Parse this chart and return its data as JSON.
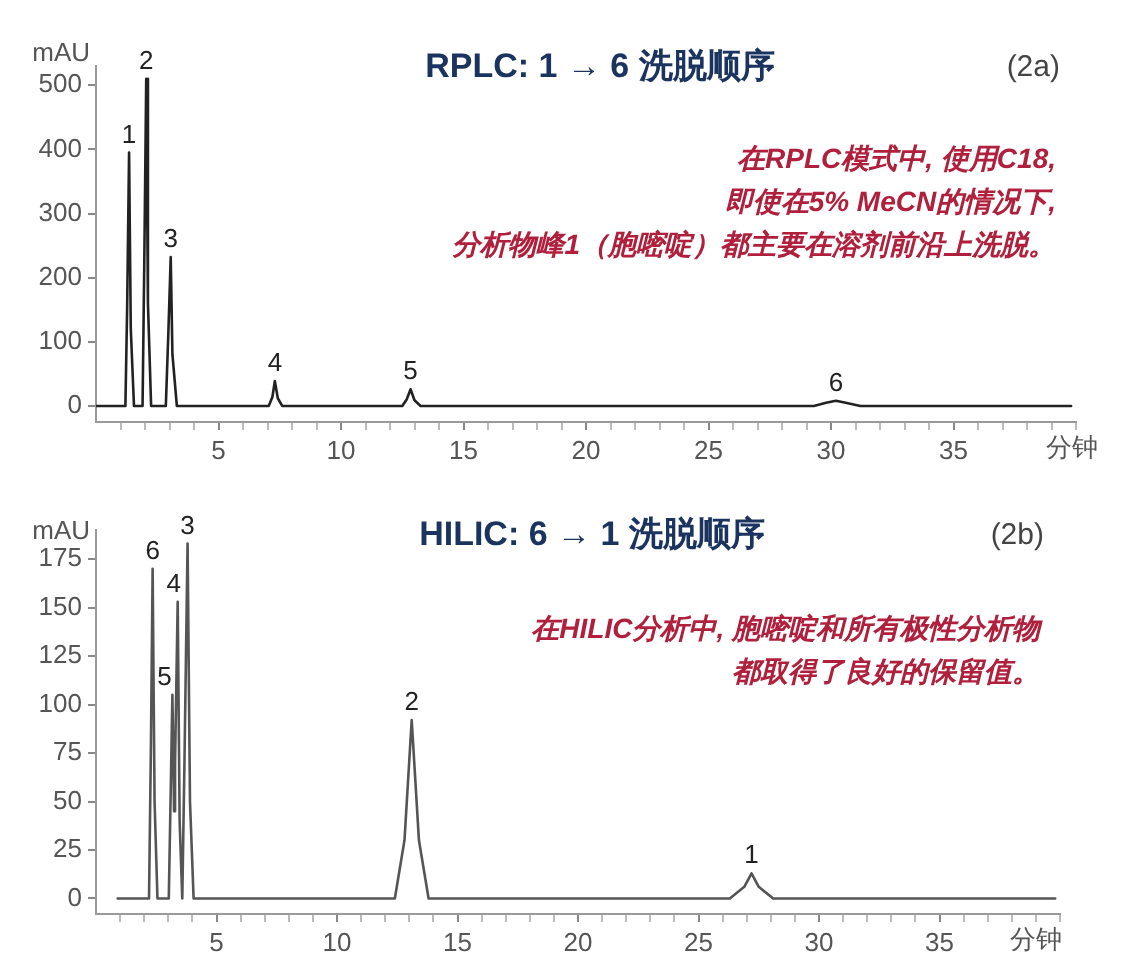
{
  "chart_data": [
    {
      "type": "line",
      "title": "RPLC: 1 → 6 洗脱顺序",
      "subtitle": "(2a)",
      "xlabel": "分钟",
      "ylabel": "mAU",
      "annotations": [
        "在RPLC模式中, 使用C18,",
        "即使在5% MeCN的情况下,",
        "分析物峰1（胞嘧啶）都主要在溶剂前沿上洗脱。",
        {
          "text": "1",
          "x": 1.35,
          "y": 395
        },
        {
          "text": "2",
          "x": 2.05,
          "y": 510
        },
        {
          "text": "3",
          "x": 3.05,
          "y": 232
        },
        {
          "text": "4",
          "x": 7.3,
          "y": 39
        },
        {
          "text": "5",
          "x": 12.84,
          "y": 26
        },
        {
          "text": "6",
          "x": 30.2,
          "y": 8
        }
      ],
      "x": [
        0,
        1.2,
        1.27,
        1.35,
        1.42,
        1.55,
        1.9,
        1.97,
        2.05,
        2.12,
        2.25,
        2.85,
        2.95,
        3.05,
        3.12,
        3.3,
        7.05,
        7.2,
        7.3,
        7.42,
        7.6,
        12.5,
        12.68,
        12.84,
        13.0,
        13.25,
        29.3,
        29.8,
        30.2,
        30.6,
        31.2,
        39.8
      ],
      "series": [
        {
          "color": "#222222",
          "values": [
            0,
            0,
            150,
            395,
            120,
            0,
            0,
            220,
            510,
            160,
            0,
            0,
            110,
            232,
            80,
            0,
            0,
            14,
            39,
            12,
            0,
            0,
            10,
            26,
            9,
            0,
            0,
            5,
            8,
            5,
            0,
            0
          ]
        }
      ],
      "xlim": [
        0,
        40
      ],
      "ylim": [
        -25,
        530
      ],
      "xticks": [
        {
          "value": 1,
          "label": null
        },
        {
          "value": 2,
          "label": null
        },
        {
          "value": 3,
          "label": null
        },
        {
          "value": 4,
          "label": null
        },
        5,
        {
          "value": 6,
          "label": null
        },
        {
          "value": 7,
          "label": null
        },
        {
          "value": 8,
          "label": null
        },
        {
          "value": 9,
          "label": null
        },
        10,
        {
          "value": 11,
          "label": null
        },
        {
          "value": 12,
          "label": null
        },
        {
          "value": 13,
          "label": null
        },
        {
          "value": 14,
          "label": null
        },
        15,
        {
          "value": 16,
          "label": null
        },
        {
          "value": 17,
          "label": null
        },
        {
          "value": 18,
          "label": null
        },
        {
          "value": 19,
          "label": null
        },
        20,
        {
          "value": 21,
          "label": null
        },
        {
          "value": 22,
          "label": null
        },
        {
          "value": 23,
          "label": null
        },
        {
          "value": 24,
          "label": null
        },
        25,
        {
          "value": 26,
          "label": null
        },
        {
          "value": 27,
          "label": null
        },
        {
          "value": 28,
          "label": null
        },
        {
          "value": 29,
          "label": null
        },
        30,
        {
          "value": 31,
          "label": null
        },
        {
          "value": 32,
          "label": null
        },
        {
          "value": 33,
          "label": null
        },
        {
          "value": 34,
          "label": null
        },
        35,
        {
          "value": 36,
          "label": null
        },
        {
          "value": 37,
          "label": null
        },
        {
          "value": 38,
          "label": null
        },
        {
          "value": 39,
          "label": null
        },
        {
          "value": 40,
          "label": null
        }
      ],
      "yticks": [
        0,
        100,
        200,
        300,
        400,
        500
      ]
    },
    {
      "type": "line",
      "title": "HILIC: 6 → 1 洗脱顺序",
      "subtitle": "(2b)",
      "xlabel": "分钟",
      "ylabel": "mAU",
      "annotations": [
        "在HILIC分析中, 胞嘧啶和所有极性分析物",
        "都取得了良好的保留值。",
        {
          "text": "6",
          "x": 2.35,
          "y": 170
        },
        {
          "text": "5",
          "x": 3.17,
          "y": 105
        },
        {
          "text": "4",
          "x": 3.39,
          "y": 153
        },
        {
          "text": "3",
          "x": 3.8,
          "y": 183
        },
        {
          "text": "2",
          "x": 13.1,
          "y": 92
        },
        {
          "text": "1",
          "x": 27.2,
          "y": 13
        }
      ],
      "x": [
        0.9,
        2.2,
        2.28,
        2.35,
        2.43,
        2.55,
        3.02,
        3.1,
        3.17,
        3.24,
        3.28,
        3.39,
        3.47,
        3.58,
        3.67,
        3.8,
        3.9,
        4.05,
        12.4,
        12.8,
        13.1,
        13.4,
        13.8,
        26.3,
        26.9,
        27.2,
        27.5,
        28.1,
        39.8
      ],
      "series": [
        {
          "color": "#555555",
          "values": [
            0,
            0,
            80,
            170,
            50,
            0,
            0,
            55,
            105,
            45,
            70,
            153,
            40,
            0,
            70,
            183,
            50,
            0,
            0,
            30,
            92,
            30,
            0,
            0,
            6,
            13,
            6,
            0,
            0
          ]
        }
      ],
      "xlim": [
        0,
        40
      ],
      "ylim": [
        -8,
        190
      ],
      "xticks": [
        {
          "value": 1,
          "label": null
        },
        {
          "value": 2,
          "label": null
        },
        {
          "value": 3,
          "label": null
        },
        {
          "value": 4,
          "label": null
        },
        5,
        {
          "value": 6,
          "label": null
        },
        {
          "value": 7,
          "label": null
        },
        {
          "value": 8,
          "label": null
        },
        {
          "value": 9,
          "label": null
        },
        10,
        {
          "value": 11,
          "label": null
        },
        {
          "value": 12,
          "label": null
        },
        {
          "value": 13,
          "label": null
        },
        {
          "value": 14,
          "label": null
        },
        15,
        {
          "value": 16,
          "label": null
        },
        {
          "value": 17,
          "label": null
        },
        {
          "value": 18,
          "label": null
        },
        {
          "value": 19,
          "label": null
        },
        20,
        {
          "value": 21,
          "label": null
        },
        {
          "value": 22,
          "label": null
        },
        {
          "value": 23,
          "label": null
        },
        {
          "value": 24,
          "label": null
        },
        25,
        {
          "value": 26,
          "label": null
        },
        {
          "value": 27,
          "label": null
        },
        {
          "value": 28,
          "label": null
        },
        {
          "value": 29,
          "label": null
        },
        30,
        {
          "value": 31,
          "label": null
        },
        {
          "value": 32,
          "label": null
        },
        {
          "value": 33,
          "label": null
        },
        {
          "value": 34,
          "label": null
        },
        35,
        {
          "value": 36,
          "label": null
        },
        {
          "value": 37,
          "label": null
        },
        {
          "value": 38,
          "label": null
        },
        {
          "value": 39,
          "label": null
        },
        {
          "value": 40,
          "label": null
        }
      ],
      "yticks": [
        0,
        25,
        50,
        75,
        100,
        125,
        150,
        175
      ]
    }
  ]
}
